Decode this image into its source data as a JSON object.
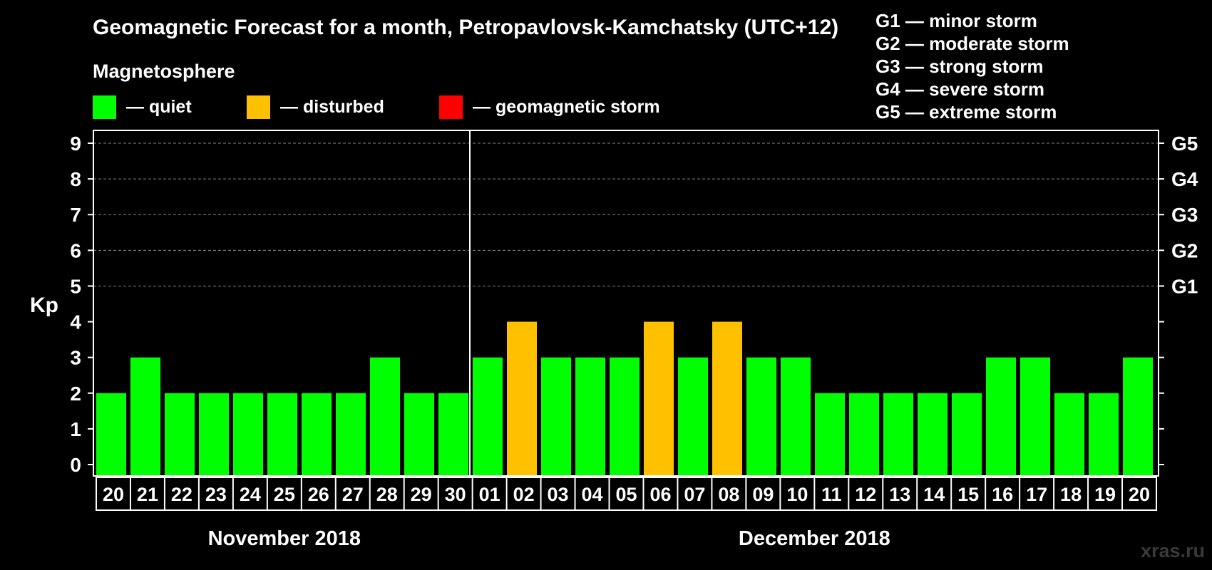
{
  "chart_data": {
    "type": "bar",
    "title": "Geomagnetic Forecast for a month, Petropavlovsk-Kamchatsky (UTC+12)",
    "ylabel": "Kp",
    "ylim": [
      0,
      9
    ],
    "yticks": [
      "0",
      "1",
      "2",
      "3",
      "4",
      "5",
      "6",
      "7",
      "8",
      "9"
    ],
    "right_ticks": [
      {
        "kp": 5,
        "label": "G1"
      },
      {
        "kp": 6,
        "label": "G2"
      },
      {
        "kp": 7,
        "label": "G3"
      },
      {
        "kp": 8,
        "label": "G4"
      },
      {
        "kp": 9,
        "label": "G5"
      }
    ],
    "categories": [
      "20",
      "21",
      "22",
      "23",
      "24",
      "25",
      "26",
      "27",
      "28",
      "29",
      "30",
      "01",
      "02",
      "03",
      "04",
      "05",
      "06",
      "07",
      "08",
      "09",
      "10",
      "11",
      "12",
      "13",
      "14",
      "15",
      "16",
      "17",
      "18",
      "19",
      "20"
    ],
    "values": [
      2,
      3,
      2,
      2,
      2,
      2,
      2,
      2,
      3,
      2,
      2,
      3,
      4,
      3,
      3,
      3,
      4,
      3,
      4,
      3,
      3,
      2,
      2,
      2,
      2,
      2,
      3,
      3,
      2,
      2,
      3
    ],
    "status": [
      "quiet",
      "quiet",
      "quiet",
      "quiet",
      "quiet",
      "quiet",
      "quiet",
      "quiet",
      "quiet",
      "quiet",
      "quiet",
      "quiet",
      "disturbed",
      "quiet",
      "quiet",
      "quiet",
      "disturbed",
      "quiet",
      "disturbed",
      "quiet",
      "quiet",
      "quiet",
      "quiet",
      "quiet",
      "quiet",
      "quiet",
      "quiet",
      "quiet",
      "quiet",
      "quiet",
      "quiet"
    ],
    "months": [
      {
        "label": "November 2018",
        "count": 11
      },
      {
        "label": "December 2018",
        "count": 20
      }
    ],
    "grid": true
  },
  "legend": {
    "title": "Magnetosphere",
    "items": [
      {
        "key": "quiet",
        "label": "— quiet",
        "color": "#00ff00"
      },
      {
        "key": "disturbed",
        "label": "— disturbed",
        "color": "#ffc000"
      },
      {
        "key": "storm",
        "label": "— geomagnetic storm",
        "color": "#ff0000"
      }
    ]
  },
  "storm_scale": [
    "G1 — minor storm",
    "G2 — moderate storm",
    "G3 — strong storm",
    "G4 — severe storm",
    "G5 — extreme storm"
  ],
  "watermark": "xras.ru"
}
